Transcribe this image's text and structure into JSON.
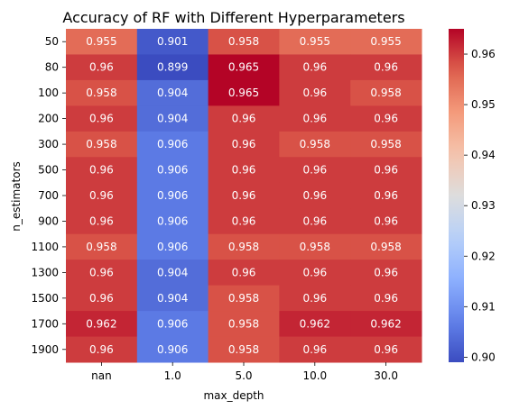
{
  "chart_data": {
    "type": "heatmap",
    "title": "Accuracy of RF with Different Hyperparameters",
    "xlabel": "max_depth",
    "ylabel": "n_estimators",
    "x_categories": [
      "nan",
      "1.0",
      "5.0",
      "10.0",
      "30.0"
    ],
    "y_categories": [
      "50",
      "80",
      "100",
      "200",
      "300",
      "500",
      "700",
      "900",
      "1100",
      "1300",
      "1500",
      "1700",
      "1900"
    ],
    "values": [
      [
        0.955,
        0.901,
        0.958,
        0.955,
        0.955
      ],
      [
        0.96,
        0.899,
        0.965,
        0.96,
        0.96
      ],
      [
        0.958,
        0.904,
        0.965,
        0.96,
        0.958
      ],
      [
        0.96,
        0.904,
        0.96,
        0.96,
        0.96
      ],
      [
        0.958,
        0.906,
        0.96,
        0.958,
        0.958
      ],
      [
        0.96,
        0.906,
        0.96,
        0.96,
        0.96
      ],
      [
        0.96,
        0.906,
        0.96,
        0.96,
        0.96
      ],
      [
        0.96,
        0.906,
        0.96,
        0.96,
        0.96
      ],
      [
        0.958,
        0.906,
        0.958,
        0.958,
        0.958
      ],
      [
        0.96,
        0.904,
        0.96,
        0.96,
        0.96
      ],
      [
        0.96,
        0.904,
        0.958,
        0.96,
        0.96
      ],
      [
        0.962,
        0.906,
        0.958,
        0.962,
        0.962
      ],
      [
        0.96,
        0.906,
        0.958,
        0.96,
        0.96
      ]
    ],
    "colormap": "coolwarm",
    "vmin": 0.899,
    "vmax": 0.965,
    "colorbar_ticks": [
      "0.90",
      "0.91",
      "0.92",
      "0.93",
      "0.94",
      "0.95",
      "0.96"
    ],
    "annotated": true
  }
}
